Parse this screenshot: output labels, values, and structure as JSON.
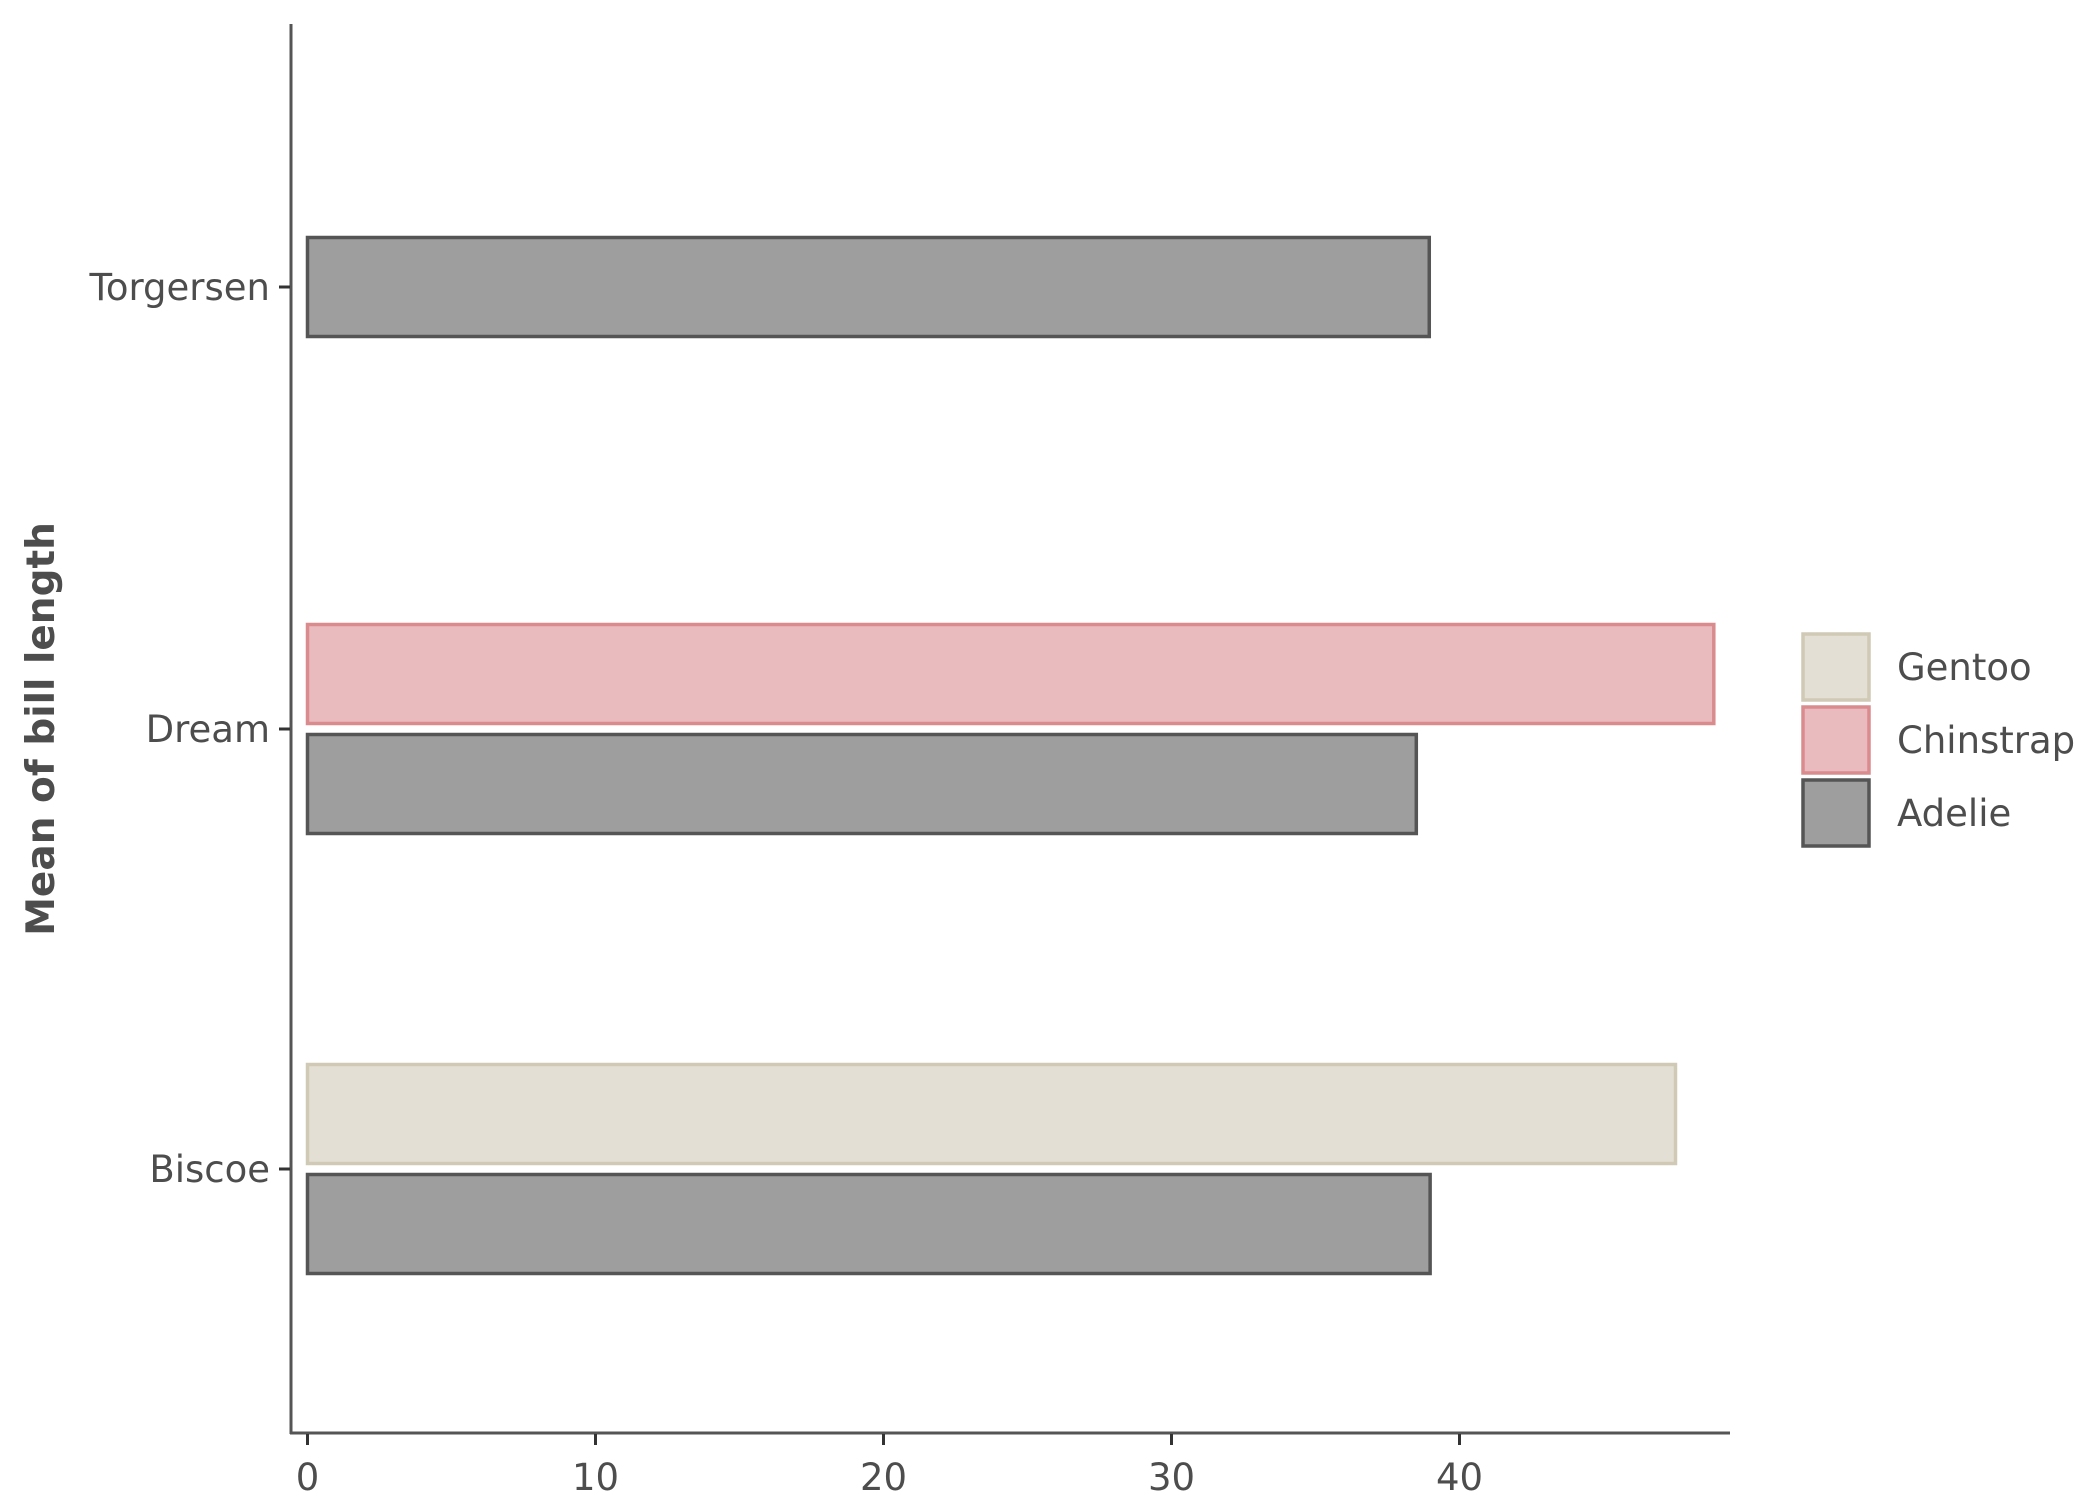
{
  "chart_data": {
    "type": "bar",
    "orientation": "horizontal",
    "title": "",
    "xlabel": "",
    "ylabel": "Mean of bill length",
    "categories": [
      "Biscoe",
      "Dream",
      "Torgersen"
    ],
    "xlim": [
      0,
      49
    ],
    "xticks": [
      0,
      10,
      20,
      30,
      40
    ],
    "grid": false,
    "legend_position": "right",
    "legend_order": [
      "Gentoo",
      "Chinstrap",
      "Adelie"
    ],
    "series": [
      {
        "name": "Adelie",
        "values": [
          38.98,
          38.5,
          38.95
        ],
        "fill": "#9e9e9e",
        "stroke": "#555555"
      },
      {
        "name": "Chinstrap",
        "values": [
          null,
          48.83,
          null
        ],
        "fill": "#eabbbe",
        "stroke": "#d98b8e"
      },
      {
        "name": "Gentoo",
        "values": [
          47.5,
          null,
          null
        ],
        "fill": "#e3dfd4",
        "stroke": "#cfc9b5"
      }
    ]
  }
}
